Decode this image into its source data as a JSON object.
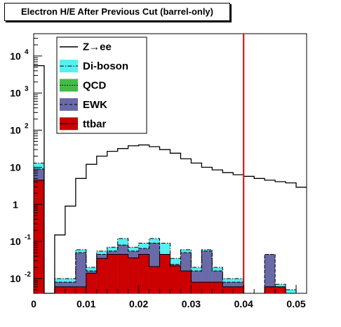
{
  "chart_data": {
    "type": "histogram",
    "title": "Electron H/E After Previous Cut (barrel-only)",
    "xlim": [
      0,
      0.052
    ],
    "ylim": [
      0.004,
      40000
    ],
    "y_scale": "log",
    "bin_width": 0.002,
    "x_ticks": [
      {
        "value": 0,
        "label": "0"
      },
      {
        "value": 0.01,
        "label": "0.01"
      },
      {
        "value": 0.02,
        "label": "0.02"
      },
      {
        "value": 0.03,
        "label": "0.03"
      },
      {
        "value": 0.04,
        "label": "0.04"
      },
      {
        "value": 0.05,
        "label": "0.05"
      }
    ],
    "y_ticks": [
      {
        "value": 0.01,
        "base": "10",
        "exp": "-2"
      },
      {
        "value": 0.1,
        "base": "10",
        "exp": "-1"
      },
      {
        "value": 1,
        "base": "1",
        "exp": ""
      },
      {
        "value": 10,
        "base": "10",
        "exp": ""
      },
      {
        "value": 100,
        "base": "10",
        "exp": "2"
      },
      {
        "value": 1000,
        "base": "10",
        "exp": "3"
      },
      {
        "value": 10000,
        "base": "10",
        "exp": "4"
      }
    ],
    "cut_line": {
      "x": 0.04,
      "color": "#e00000"
    },
    "bin_edges": [
      0,
      0.002,
      0.004,
      0.006,
      0.008,
      0.01,
      0.012,
      0.014,
      0.016,
      0.018,
      0.02,
      0.022,
      0.024,
      0.026,
      0.028,
      0.03,
      0.032,
      0.034,
      0.036,
      0.038,
      0.04,
      0.042,
      0.044,
      0.046,
      0.048,
      0.05,
      0.052
    ],
    "series": [
      {
        "name": "Z→ee",
        "style": "line",
        "color": "#000000",
        "values": [
          5500,
          0,
          0.15,
          0.9,
          5,
          12,
          20,
          27,
          32,
          38,
          40,
          36,
          30,
          24,
          17,
          13,
          10,
          8.5,
          7.2,
          6.3,
          5.7,
          5.0,
          4.5,
          4.1,
          3.8,
          2.9
        ]
      },
      {
        "name": "ttbar",
        "style": "fill",
        "color": "#cc0000",
        "values": [
          4.5,
          0,
          0.006,
          0.006,
          0.006,
          0.014,
          0.035,
          0.045,
          0.045,
          0.036,
          0.045,
          0.021,
          0.045,
          0.022,
          0.016,
          0.008,
          0.008,
          0.008,
          0.006,
          0.006,
          0,
          0,
          0.006,
          0.006,
          0,
          0
        ]
      },
      {
        "name": "EWK",
        "style": "fill",
        "color": "#6a6aa8",
        "values": [
          9,
          0,
          0.008,
          0.008,
          0.05,
          0.016,
          0.045,
          0.055,
          0.08,
          0.055,
          0.065,
          0.09,
          0.045,
          0.024,
          0.05,
          0.016,
          0.055,
          0.016,
          0.008,
          0.008,
          0,
          0,
          0.045,
          0.006,
          0,
          0
        ]
      },
      {
        "name": "QCD",
        "style": "fill",
        "color": "#44bb44",
        "values": [
          9,
          0,
          0.008,
          0.008,
          0.05,
          0.016,
          0.045,
          0.055,
          0.08,
          0.055,
          0.065,
          0.09,
          0.045,
          0.024,
          0.05,
          0.016,
          0.055,
          0.016,
          0.008,
          0.008,
          0,
          0,
          0.045,
          0.006,
          0,
          0
        ]
      },
      {
        "name": "Di-boson",
        "style": "fill",
        "color": "#55f0f0",
        "values": [
          13,
          0,
          0.01,
          0.01,
          0.06,
          0.02,
          0.055,
          0.07,
          0.12,
          0.07,
          0.09,
          0.12,
          0.09,
          0.035,
          0.06,
          0.02,
          0.06,
          0.02,
          0.01,
          0.01,
          0,
          0.004,
          0.006,
          0.007,
          0.005,
          0
        ]
      }
    ],
    "legend": {
      "position": "top-left",
      "entries": [
        {
          "label": "Z→ee",
          "swatch": "line",
          "color": "#000000"
        },
        {
          "label": "Di-boson",
          "swatch": "box",
          "color": "#55f0f0",
          "dash": "dashdot"
        },
        {
          "label": "QCD",
          "swatch": "box",
          "color": "#44bb44",
          "dash": "dot"
        },
        {
          "label": "EWK",
          "swatch": "box",
          "color": "#6a6aa8",
          "dash": "dash"
        },
        {
          "label": "ttbar",
          "swatch": "box",
          "color": "#cc0000",
          "dash": "solid"
        }
      ]
    }
  }
}
